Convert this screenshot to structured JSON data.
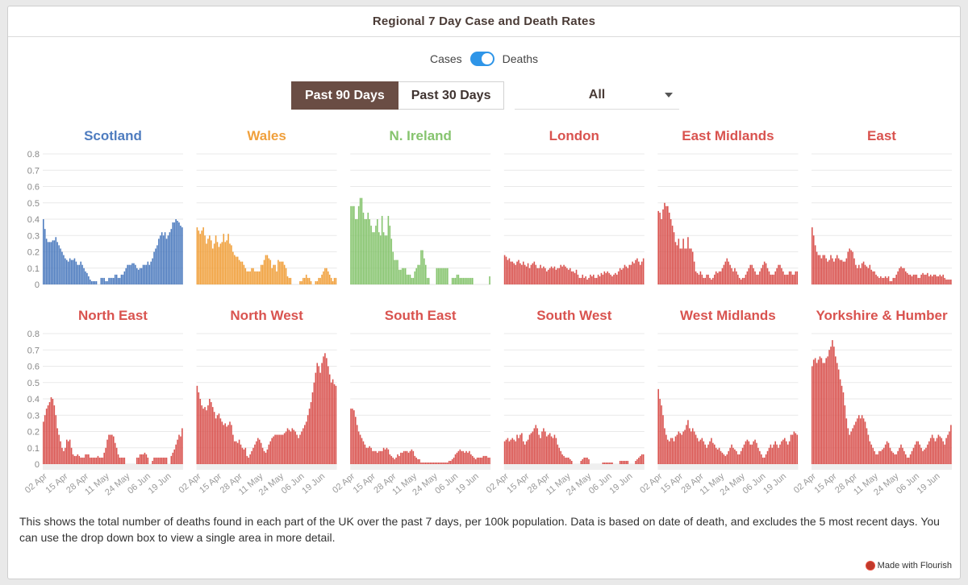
{
  "title": "Regional 7 Day Case and Death Rates",
  "toggle": {
    "left_label": "Cases",
    "right_label": "Deaths",
    "state": "Deaths"
  },
  "range_buttons": [
    {
      "label": "Past 90 Days",
      "active": true
    },
    {
      "label": "Past 30 Days",
      "active": false
    }
  ],
  "dropdown": {
    "value": "All"
  },
  "caption": "This shows the total number of deaths found in each part of the UK over the past 7 days, per 100k population. Data is based on date of death, and excludes the 5 most recent days. You can use the drop down box to view a single area in more detail.",
  "credit": "Made with Flourish",
  "colors": {
    "scotland": "#4e7cbf",
    "wales": "#f0a03c",
    "nireland": "#86c46e",
    "england": "#d9534f",
    "title_brown": "#4a3b36"
  },
  "chart_data": {
    "type": "bar",
    "ylim": [
      0,
      0.8
    ],
    "yticks": [
      "0",
      "0.1",
      "0.2",
      "0.3",
      "0.4",
      "0.5",
      "0.6",
      "0.7",
      "0.8"
    ],
    "xticks": [
      "02 Apr",
      "15 Apr",
      "28 Apr",
      "11 May",
      "24 May",
      "06 Jun",
      "19 Jun"
    ],
    "panels": [
      {
        "name": "Scotland",
        "color": "#4e7cbf",
        "values": [
          0.4,
          0.34,
          0.28,
          0.26,
          0.26,
          0.26,
          0.27,
          0.27,
          0.29,
          0.26,
          0.24,
          0.22,
          0.2,
          0.18,
          0.16,
          0.15,
          0.14,
          0.16,
          0.15,
          0.15,
          0.16,
          0.14,
          0.12,
          0.12,
          0.14,
          0.12,
          0.1,
          0.08,
          0.07,
          0.05,
          0.03,
          0.02,
          0.02,
          0.02,
          0.02,
          0.0,
          0.0,
          0.04,
          0.04,
          0.04,
          0.02,
          0.02,
          0.04,
          0.04,
          0.04,
          0.04,
          0.06,
          0.06,
          0.04,
          0.04,
          0.06,
          0.06,
          0.08,
          0.1,
          0.12,
          0.12,
          0.12,
          0.13,
          0.13,
          0.12,
          0.1,
          0.09,
          0.1,
          0.1,
          0.12,
          0.12,
          0.12,
          0.14,
          0.12,
          0.14,
          0.16,
          0.2,
          0.22,
          0.24,
          0.28,
          0.3,
          0.32,
          0.3,
          0.32,
          0.28,
          0.3,
          0.32,
          0.34,
          0.38,
          0.38,
          0.4,
          0.39,
          0.38,
          0.36,
          0.35
        ]
      },
      {
        "name": "Wales",
        "color": "#f0a03c",
        "values": [
          0.35,
          0.33,
          0.31,
          0.33,
          0.35,
          0.3,
          0.25,
          0.28,
          0.3,
          0.27,
          0.22,
          0.25,
          0.3,
          0.26,
          0.23,
          0.25,
          0.26,
          0.31,
          0.26,
          0.27,
          0.31,
          0.25,
          0.24,
          0.2,
          0.18,
          0.17,
          0.17,
          0.15,
          0.14,
          0.14,
          0.12,
          0.1,
          0.08,
          0.08,
          0.08,
          0.1,
          0.1,
          0.08,
          0.08,
          0.08,
          0.08,
          0.12,
          0.12,
          0.15,
          0.18,
          0.18,
          0.16,
          0.15,
          0.1,
          0.12,
          0.12,
          0.08,
          0.15,
          0.14,
          0.14,
          0.14,
          0.12,
          0.1,
          0.05,
          0.04,
          0.04,
          0.0,
          0.0,
          0.0,
          0.0,
          0.0,
          0.02,
          0.02,
          0.04,
          0.04,
          0.06,
          0.04,
          0.04,
          0.02,
          0.0,
          0.0,
          0.02,
          0.02,
          0.04,
          0.04,
          0.06,
          0.08,
          0.1,
          0.1,
          0.08,
          0.06,
          0.04,
          0.02,
          0.04,
          0.04
        ]
      },
      {
        "name": "N. Ireland",
        "color": "#86c46e",
        "values": [
          0.48,
          0.48,
          0.48,
          0.4,
          0.4,
          0.48,
          0.53,
          0.53,
          0.44,
          0.4,
          0.4,
          0.44,
          0.4,
          0.36,
          0.32,
          0.32,
          0.36,
          0.4,
          0.32,
          0.3,
          0.42,
          0.32,
          0.3,
          0.3,
          0.42,
          0.36,
          0.28,
          0.2,
          0.15,
          0.15,
          0.15,
          0.09,
          0.09,
          0.1,
          0.1,
          0.1,
          0.06,
          0.06,
          0.06,
          0.04,
          0.04,
          0.08,
          0.1,
          0.12,
          0.12,
          0.21,
          0.21,
          0.16,
          0.12,
          0.04,
          0.04,
          0.0,
          0.0,
          0.0,
          0.0,
          0.1,
          0.1,
          0.1,
          0.1,
          0.1,
          0.1,
          0.1,
          0.1,
          0.0,
          0.0,
          0.04,
          0.04,
          0.04,
          0.06,
          0.06,
          0.04,
          0.04,
          0.04,
          0.04,
          0.04,
          0.04,
          0.04,
          0.04,
          0.04,
          0.0,
          0.0,
          0.0,
          0.0,
          0.0,
          0.0,
          0.0,
          0.0,
          0.0,
          0.0,
          0.05
        ]
      },
      {
        "name": "London",
        "color": "#d9534f",
        "values": [
          0.18,
          0.17,
          0.15,
          0.16,
          0.14,
          0.14,
          0.13,
          0.12,
          0.14,
          0.15,
          0.13,
          0.12,
          0.14,
          0.12,
          0.11,
          0.13,
          0.1,
          0.12,
          0.13,
          0.14,
          0.12,
          0.1,
          0.1,
          0.12,
          0.1,
          0.11,
          0.1,
          0.08,
          0.09,
          0.1,
          0.11,
          0.1,
          0.11,
          0.09,
          0.1,
          0.1,
          0.12,
          0.11,
          0.12,
          0.11,
          0.1,
          0.09,
          0.1,
          0.08,
          0.08,
          0.07,
          0.09,
          0.06,
          0.04,
          0.04,
          0.06,
          0.04,
          0.05,
          0.03,
          0.04,
          0.06,
          0.05,
          0.06,
          0.04,
          0.04,
          0.06,
          0.05,
          0.07,
          0.06,
          0.08,
          0.07,
          0.08,
          0.07,
          0.06,
          0.05,
          0.06,
          0.07,
          0.06,
          0.08,
          0.1,
          0.09,
          0.1,
          0.12,
          0.11,
          0.1,
          0.12,
          0.12,
          0.14,
          0.13,
          0.15,
          0.16,
          0.14,
          0.12,
          0.14,
          0.16
        ]
      },
      {
        "name": "East Midlands",
        "color": "#d9534f",
        "values": [
          0.45,
          0.44,
          0.4,
          0.46,
          0.5,
          0.48,
          0.48,
          0.44,
          0.4,
          0.36,
          0.32,
          0.26,
          0.24,
          0.28,
          0.22,
          0.22,
          0.28,
          0.22,
          0.22,
          0.29,
          0.22,
          0.22,
          0.2,
          0.14,
          0.08,
          0.07,
          0.06,
          0.08,
          0.06,
          0.04,
          0.04,
          0.06,
          0.06,
          0.04,
          0.03,
          0.04,
          0.06,
          0.08,
          0.07,
          0.08,
          0.08,
          0.1,
          0.12,
          0.14,
          0.16,
          0.14,
          0.12,
          0.1,
          0.08,
          0.1,
          0.08,
          0.06,
          0.04,
          0.03,
          0.04,
          0.04,
          0.06,
          0.08,
          0.1,
          0.12,
          0.12,
          0.1,
          0.08,
          0.06,
          0.06,
          0.08,
          0.1,
          0.12,
          0.14,
          0.13,
          0.1,
          0.08,
          0.06,
          0.06,
          0.06,
          0.08,
          0.1,
          0.12,
          0.12,
          0.1,
          0.08,
          0.06,
          0.06,
          0.06,
          0.08,
          0.08,
          0.06,
          0.06,
          0.08,
          0.08
        ]
      },
      {
        "name": "East",
        "color": "#d9534f",
        "values": [
          0.35,
          0.3,
          0.24,
          0.2,
          0.18,
          0.18,
          0.16,
          0.18,
          0.18,
          0.16,
          0.14,
          0.15,
          0.18,
          0.16,
          0.14,
          0.16,
          0.18,
          0.16,
          0.15,
          0.15,
          0.14,
          0.14,
          0.16,
          0.2,
          0.22,
          0.21,
          0.2,
          0.16,
          0.12,
          0.1,
          0.12,
          0.1,
          0.13,
          0.14,
          0.12,
          0.11,
          0.1,
          0.12,
          0.09,
          0.08,
          0.08,
          0.06,
          0.05,
          0.04,
          0.05,
          0.04,
          0.04,
          0.05,
          0.04,
          0.05,
          0.02,
          0.02,
          0.04,
          0.04,
          0.06,
          0.08,
          0.1,
          0.11,
          0.1,
          0.1,
          0.08,
          0.07,
          0.06,
          0.06,
          0.05,
          0.06,
          0.06,
          0.06,
          0.04,
          0.04,
          0.06,
          0.07,
          0.06,
          0.06,
          0.07,
          0.05,
          0.06,
          0.05,
          0.06,
          0.06,
          0.05,
          0.05,
          0.06,
          0.05,
          0.06,
          0.04,
          0.03,
          0.03,
          0.03,
          0.03
        ]
      },
      {
        "name": "North East",
        "color": "#d9534f",
        "values": [
          0.26,
          0.3,
          0.34,
          0.36,
          0.38,
          0.41,
          0.4,
          0.36,
          0.3,
          0.22,
          0.18,
          0.14,
          0.1,
          0.08,
          0.1,
          0.15,
          0.14,
          0.15,
          0.1,
          0.06,
          0.05,
          0.05,
          0.06,
          0.05,
          0.04,
          0.04,
          0.04,
          0.06,
          0.06,
          0.06,
          0.04,
          0.04,
          0.04,
          0.04,
          0.04,
          0.05,
          0.04,
          0.04,
          0.04,
          0.07,
          0.1,
          0.15,
          0.18,
          0.18,
          0.18,
          0.17,
          0.13,
          0.1,
          0.06,
          0.04,
          0.04,
          0.04,
          0.04,
          0.0,
          0.0,
          0.0,
          0.0,
          0.0,
          0.0,
          0.0,
          0.04,
          0.04,
          0.06,
          0.06,
          0.06,
          0.07,
          0.06,
          0.04,
          0.0,
          0.0,
          0.02,
          0.04,
          0.04,
          0.04,
          0.04,
          0.04,
          0.04,
          0.04,
          0.04,
          0.04,
          0.0,
          0.0,
          0.05,
          0.07,
          0.09,
          0.12,
          0.15,
          0.18,
          0.17,
          0.22
        ]
      },
      {
        "name": "North West",
        "color": "#d9534f",
        "values": [
          0.48,
          0.44,
          0.4,
          0.36,
          0.34,
          0.35,
          0.33,
          0.36,
          0.4,
          0.38,
          0.35,
          0.32,
          0.28,
          0.3,
          0.31,
          0.28,
          0.26,
          0.24,
          0.25,
          0.23,
          0.24,
          0.26,
          0.24,
          0.18,
          0.14,
          0.14,
          0.13,
          0.15,
          0.12,
          0.1,
          0.09,
          0.1,
          0.05,
          0.04,
          0.06,
          0.08,
          0.1,
          0.12,
          0.14,
          0.16,
          0.15,
          0.13,
          0.1,
          0.08,
          0.07,
          0.09,
          0.12,
          0.14,
          0.16,
          0.17,
          0.18,
          0.18,
          0.18,
          0.18,
          0.18,
          0.18,
          0.19,
          0.2,
          0.22,
          0.21,
          0.2,
          0.22,
          0.21,
          0.2,
          0.18,
          0.16,
          0.18,
          0.2,
          0.22,
          0.24,
          0.26,
          0.3,
          0.34,
          0.38,
          0.44,
          0.5,
          0.56,
          0.62,
          0.6,
          0.56,
          0.62,
          0.66,
          0.68,
          0.65,
          0.6,
          0.55,
          0.5,
          0.52,
          0.49,
          0.48
        ]
      },
      {
        "name": "South East",
        "color": "#d9534f",
        "values": [
          0.34,
          0.34,
          0.33,
          0.29,
          0.24,
          0.2,
          0.18,
          0.16,
          0.14,
          0.12,
          0.1,
          0.1,
          0.11,
          0.1,
          0.08,
          0.08,
          0.08,
          0.07,
          0.08,
          0.08,
          0.08,
          0.1,
          0.09,
          0.1,
          0.09,
          0.06,
          0.05,
          0.04,
          0.03,
          0.04,
          0.06,
          0.05,
          0.07,
          0.07,
          0.08,
          0.08,
          0.08,
          0.07,
          0.08,
          0.09,
          0.08,
          0.05,
          0.04,
          0.03,
          0.03,
          0.01,
          0.01,
          0.01,
          0.01,
          0.01,
          0.01,
          0.01,
          0.01,
          0.01,
          0.01,
          0.01,
          0.01,
          0.01,
          0.01,
          0.01,
          0.01,
          0.01,
          0.01,
          0.02,
          0.02,
          0.03,
          0.04,
          0.06,
          0.07,
          0.08,
          0.09,
          0.08,
          0.08,
          0.07,
          0.08,
          0.07,
          0.08,
          0.06,
          0.05,
          0.04,
          0.03,
          0.04,
          0.04,
          0.04,
          0.04,
          0.05,
          0.05,
          0.05,
          0.04,
          0.04
        ]
      },
      {
        "name": "South West",
        "color": "#d9534f",
        "values": [
          0.14,
          0.15,
          0.16,
          0.14,
          0.15,
          0.16,
          0.15,
          0.14,
          0.18,
          0.16,
          0.18,
          0.19,
          0.14,
          0.12,
          0.14,
          0.15,
          0.18,
          0.19,
          0.2,
          0.22,
          0.24,
          0.22,
          0.18,
          0.16,
          0.2,
          0.22,
          0.2,
          0.17,
          0.18,
          0.19,
          0.17,
          0.16,
          0.18,
          0.16,
          0.12,
          0.1,
          0.08,
          0.06,
          0.05,
          0.04,
          0.04,
          0.04,
          0.03,
          0.02,
          0.0,
          0.0,
          0.0,
          0.0,
          0.0,
          0.02,
          0.03,
          0.04,
          0.04,
          0.04,
          0.03,
          0.0,
          0.0,
          0.0,
          0.0,
          0.0,
          0.0,
          0.0,
          0.0,
          0.01,
          0.01,
          0.01,
          0.01,
          0.01,
          0.01,
          0.01,
          0.0,
          0.0,
          0.0,
          0.0,
          0.02,
          0.02,
          0.02,
          0.02,
          0.02,
          0.02,
          0.0,
          0.0,
          0.0,
          0.0,
          0.02,
          0.03,
          0.04,
          0.05,
          0.06,
          0.06
        ]
      },
      {
        "name": "West Midlands",
        "color": "#d9534f",
        "values": [
          0.46,
          0.4,
          0.36,
          0.3,
          0.22,
          0.18,
          0.15,
          0.14,
          0.16,
          0.16,
          0.14,
          0.17,
          0.18,
          0.2,
          0.19,
          0.18,
          0.2,
          0.21,
          0.24,
          0.27,
          0.22,
          0.2,
          0.22,
          0.2,
          0.18,
          0.16,
          0.14,
          0.15,
          0.16,
          0.14,
          0.12,
          0.1,
          0.12,
          0.14,
          0.16,
          0.13,
          0.12,
          0.1,
          0.09,
          0.1,
          0.08,
          0.07,
          0.06,
          0.05,
          0.06,
          0.08,
          0.1,
          0.12,
          0.1,
          0.09,
          0.08,
          0.06,
          0.06,
          0.08,
          0.1,
          0.12,
          0.14,
          0.15,
          0.14,
          0.12,
          0.12,
          0.14,
          0.15,
          0.13,
          0.1,
          0.08,
          0.06,
          0.04,
          0.04,
          0.06,
          0.08,
          0.1,
          0.12,
          0.1,
          0.12,
          0.14,
          0.12,
          0.1,
          0.12,
          0.14,
          0.15,
          0.16,
          0.14,
          0.12,
          0.14,
          0.18,
          0.18,
          0.2,
          0.19,
          0.18
        ]
      },
      {
        "name": "Yorkshire & Humber",
        "color": "#d9534f",
        "values": [
          0.6,
          0.64,
          0.65,
          0.62,
          0.64,
          0.66,
          0.65,
          0.62,
          0.62,
          0.65,
          0.66,
          0.7,
          0.72,
          0.76,
          0.72,
          0.66,
          0.62,
          0.58,
          0.52,
          0.48,
          0.44,
          0.36,
          0.28,
          0.22,
          0.18,
          0.2,
          0.22,
          0.24,
          0.26,
          0.28,
          0.3,
          0.28,
          0.3,
          0.28,
          0.26,
          0.22,
          0.18,
          0.14,
          0.12,
          0.1,
          0.08,
          0.06,
          0.06,
          0.08,
          0.08,
          0.09,
          0.1,
          0.12,
          0.14,
          0.13,
          0.1,
          0.08,
          0.07,
          0.06,
          0.06,
          0.08,
          0.1,
          0.12,
          0.1,
          0.08,
          0.06,
          0.04,
          0.04,
          0.06,
          0.08,
          0.1,
          0.12,
          0.14,
          0.14,
          0.12,
          0.1,
          0.08,
          0.09,
          0.1,
          0.12,
          0.14,
          0.16,
          0.18,
          0.16,
          0.14,
          0.16,
          0.18,
          0.17,
          0.16,
          0.14,
          0.12,
          0.16,
          0.18,
          0.2,
          0.24
        ]
      }
    ]
  }
}
